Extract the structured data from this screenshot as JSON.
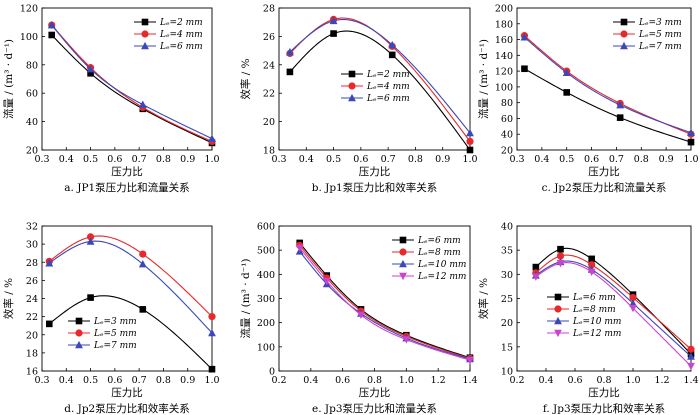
{
  "chart_data": [
    {
      "id": "a",
      "type": "line",
      "caption": "a. JP1泵压力比和流量关系",
      "xlabel": "压力比",
      "ylabel": "流量 / (m³ · d⁻¹)",
      "xlim": [
        0.3,
        1.0
      ],
      "ylim": [
        20,
        120
      ],
      "xticks": [
        "0.3",
        "0.4",
        "0.5",
        "0.6",
        "0.7",
        "0.8",
        "0.9",
        "1.0"
      ],
      "yticks": [
        "20",
        "40",
        "60",
        "80",
        "100",
        "120"
      ],
      "legend_position": "top-right",
      "x": [
        0.34,
        0.5,
        0.715,
        1.0
      ],
      "series": [
        {
          "name": "Lₑ=2 mm",
          "marker": "square",
          "color": "#000000",
          "values": [
            101,
            74,
            49,
            25
          ]
        },
        {
          "name": "Lₑ=4 mm",
          "marker": "circle",
          "color": "#e8282b",
          "values": [
            108,
            78,
            50,
            26
          ]
        },
        {
          "name": "Lₑ=6 mm",
          "marker": "triangle",
          "color": "#3a48b8",
          "values": [
            108,
            77,
            52,
            28
          ]
        }
      ]
    },
    {
      "id": "b",
      "type": "line",
      "caption": "b. Jp1泵压力比和效率关系",
      "xlabel": "压力比",
      "ylabel": "效率 / %",
      "xlim": [
        0.3,
        1.0
      ],
      "ylim": [
        18,
        28
      ],
      "xticks": [
        "0.3",
        "0.4",
        "0.5",
        "0.6",
        "0.7",
        "0.8",
        "0.9",
        "1.0"
      ],
      "yticks": [
        "18",
        "20",
        "22",
        "24",
        "26",
        "28"
      ],
      "legend_position": "center",
      "x": [
        0.34,
        0.5,
        0.715,
        1.0
      ],
      "series": [
        {
          "name": "Lₑ=2 mm",
          "marker": "square",
          "color": "#000000",
          "values": [
            23.5,
            26.2,
            24.7,
            18.0
          ]
        },
        {
          "name": "Lₑ=4 mm",
          "marker": "circle",
          "color": "#e8282b",
          "values": [
            24.8,
            27.2,
            25.3,
            18.6
          ]
        },
        {
          "name": "Lₑ=6 mm",
          "marker": "triangle",
          "color": "#3a48b8",
          "values": [
            24.9,
            27.1,
            25.4,
            19.2
          ]
        }
      ]
    },
    {
      "id": "c",
      "type": "line",
      "caption": "c. Jp2泵压力比和流量关系",
      "xlabel": "压力比",
      "ylabel": "流量 / (m³ · d⁻¹)",
      "xlim": [
        0.3,
        1.0
      ],
      "ylim": [
        20,
        200
      ],
      "xticks": [
        "0.3",
        "0.4",
        "0.5",
        "0.6",
        "0.7",
        "0.8",
        "0.9",
        "1.0"
      ],
      "yticks": [
        "20",
        "40",
        "60",
        "80",
        "100",
        "120",
        "140",
        "160",
        "180",
        "200"
      ],
      "legend_position": "top-right",
      "x": [
        0.33,
        0.5,
        0.715,
        1.0
      ],
      "series": [
        {
          "name": "Lₑ=3 mm",
          "marker": "square",
          "color": "#000000",
          "values": [
            123,
            93,
            61,
            30
          ]
        },
        {
          "name": "Lₑ=5 mm",
          "marker": "circle",
          "color": "#e8282b",
          "values": [
            165,
            120,
            79,
            40
          ]
        },
        {
          "name": "Lₑ=7 mm",
          "marker": "triangle",
          "color": "#3a48b8",
          "values": [
            163,
            118,
            77,
            42
          ]
        }
      ]
    },
    {
      "id": "d",
      "type": "line",
      "caption": "d. Jp2泵压力比和效率关系",
      "xlabel": "压力比",
      "ylabel": "效率 / %",
      "xlim": [
        0.3,
        1.0
      ],
      "ylim": [
        16,
        32
      ],
      "xticks": [
        "0.3",
        "0.4",
        "0.5",
        "0.6",
        "0.7",
        "0.8",
        "0.9",
        "1.0"
      ],
      "yticks": [
        "16",
        "18",
        "20",
        "22",
        "24",
        "26",
        "28",
        "30",
        "32"
      ],
      "legend_position": "bottom-left",
      "x": [
        0.33,
        0.5,
        0.715,
        1.0
      ],
      "series": [
        {
          "name": "Lₑ=3 mm",
          "marker": "square",
          "color": "#000000",
          "values": [
            21.2,
            24.1,
            22.8,
            16.2
          ]
        },
        {
          "name": "Lₑ=5 mm",
          "marker": "circle",
          "color": "#e8282b",
          "values": [
            28.1,
            30.8,
            28.9,
            22.0
          ]
        },
        {
          "name": "Lₑ=7 mm",
          "marker": "triangle",
          "color": "#3a48b8",
          "values": [
            27.9,
            30.3,
            27.8,
            20.2
          ]
        }
      ]
    },
    {
      "id": "e",
      "type": "line",
      "caption": "e. Jp3泵压力比和流量关系",
      "xlabel": "压力比",
      "ylabel": "流量 / (m³ · d⁻¹)",
      "xlim": [
        0.2,
        1.4
      ],
      "ylim": [
        0,
        600
      ],
      "xticks": [
        "0.2",
        "0.4",
        "0.6",
        "0.8",
        "1.0",
        "1.2",
        "1.4"
      ],
      "yticks": [
        "0",
        "100",
        "200",
        "300",
        "400",
        "500",
        "600"
      ],
      "legend_position": "top-right",
      "x": [
        0.33,
        0.5,
        0.715,
        1.0,
        1.4
      ],
      "series": [
        {
          "name": "Lₑ=6 mm",
          "marker": "square",
          "color": "#000000",
          "values": [
            530,
            395,
            255,
            148,
            55
          ]
        },
        {
          "name": "Lₑ=8 mm",
          "marker": "circle",
          "color": "#e8282b",
          "values": [
            520,
            385,
            248,
            143,
            52
          ]
        },
        {
          "name": "Lₑ=10 mm",
          "marker": "triangle",
          "color": "#3a48b8",
          "values": [
            495,
            360,
            238,
            136,
            50
          ]
        },
        {
          "name": "Lₑ=12 mm",
          "marker": "triangle-down",
          "color": "#cc44cc",
          "values": [
            510,
            372,
            232,
            130,
            45
          ]
        }
      ]
    },
    {
      "id": "f",
      "type": "line",
      "caption": "f. Jp3泵压力比和效率关系",
      "xlabel": "压力比",
      "ylabel": "效率 / %",
      "xlim": [
        0.2,
        1.4
      ],
      "ylim": [
        10,
        40
      ],
      "xticks": [
        "0.2",
        "0.4",
        "0.6",
        "0.8",
        "1.0",
        "1.2",
        "1.4"
      ],
      "yticks": [
        "10",
        "15",
        "20",
        "25",
        "30",
        "35",
        "40"
      ],
      "legend_position": "bottom-center",
      "x": [
        0.33,
        0.5,
        0.715,
        1.0,
        1.4
      ],
      "series": [
        {
          "name": "Lₑ=6 mm",
          "marker": "square",
          "color": "#000000",
          "values": [
            31.5,
            35.2,
            33.2,
            25.8,
            13.5
          ]
        },
        {
          "name": "Lₑ=8 mm",
          "marker": "circle",
          "color": "#e8282b",
          "values": [
            30.3,
            33.8,
            32.0,
            25.2,
            14.5
          ]
        },
        {
          "name": "Lₑ=10 mm",
          "marker": "triangle",
          "color": "#3a48b8",
          "values": [
            29.8,
            32.6,
            31.0,
            24.0,
            13.0
          ]
        },
        {
          "name": "Lₑ=12 mm",
          "marker": "triangle-down",
          "color": "#cc44cc",
          "values": [
            29.5,
            32.3,
            30.5,
            23.0,
            11.0
          ]
        }
      ]
    }
  ]
}
